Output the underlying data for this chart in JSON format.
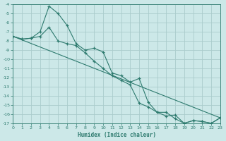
{
  "xlabel": "Humidex (Indice chaleur)",
  "background_color": "#cce8e8",
  "grid_color": "#aacccc",
  "line_color": "#2d7a6e",
  "xlim": [
    0,
    23
  ],
  "ylim_bottom": -17,
  "ylim_top": -4,
  "x_ticks": [
    0,
    1,
    2,
    3,
    4,
    5,
    6,
    7,
    8,
    9,
    10,
    11,
    12,
    13,
    14,
    15,
    16,
    17,
    18,
    19,
    20,
    21,
    22,
    23
  ],
  "y_ticks": [
    -4,
    -5,
    -6,
    -7,
    -8,
    -9,
    -10,
    -11,
    -12,
    -13,
    -14,
    -15,
    -16,
    -17
  ],
  "line1_x": [
    0,
    1,
    2,
    3,
    4,
    5,
    6,
    7,
    8,
    9,
    10,
    11,
    12,
    13,
    14,
    15,
    16,
    17,
    18,
    19,
    20,
    21,
    22,
    23
  ],
  "line1_y": [
    -7.5,
    -7.8,
    -7.7,
    -7.0,
    -4.2,
    -5.0,
    -6.3,
    -8.3,
    -9.0,
    -8.8,
    -9.2,
    -11.5,
    -11.8,
    -12.5,
    -12.1,
    -14.7,
    -15.8,
    -15.8,
    -16.5,
    -17.0,
    -16.7,
    -16.8,
    -17.0,
    -16.4
  ],
  "line2_x": [
    0,
    1,
    2,
    3,
    4,
    5,
    6,
    7,
    8,
    9,
    10,
    11,
    12,
    13,
    14,
    15,
    16,
    17,
    18,
    19,
    20,
    21,
    22,
    23
  ],
  "line2_y": [
    -7.5,
    -7.8,
    -7.7,
    -7.5,
    -6.5,
    -8.0,
    -8.3,
    -8.5,
    -9.3,
    -10.2,
    -11.0,
    -11.8,
    -12.3,
    -12.8,
    -14.8,
    -15.2,
    -15.8,
    -16.2,
    -16.1,
    -17.0,
    -16.7,
    -16.8,
    -17.0,
    -16.4
  ],
  "line3_x": [
    0,
    23
  ],
  "line3_y": [
    -7.5,
    -16.4
  ]
}
